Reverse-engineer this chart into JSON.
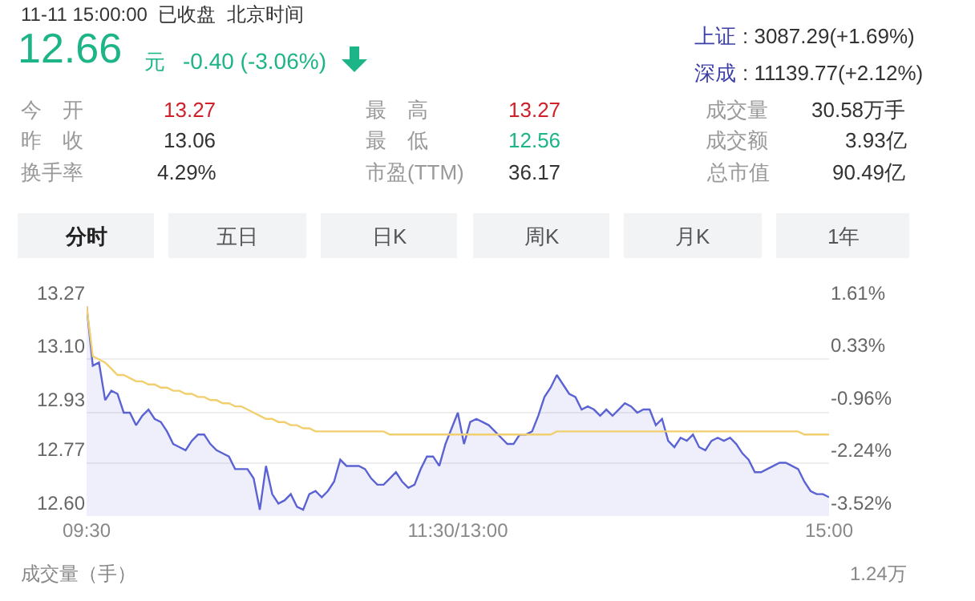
{
  "chart_data": {
    "type": "line",
    "annotations": [
      "11-11 15:00:00  已收盘  北京时间",
      "12.66",
      "元",
      "-0.40 (-3.06%)",
      "上证",
      ": 3087.29(+1.69%)",
      "深成",
      ": 11139.77(+2.12%)",
      "今　开",
      "13.27",
      "最　高",
      "13.27",
      "成交量",
      "30.58万手",
      "昨　收",
      "13.06",
      "最　低",
      "12.56",
      "成交额",
      "3.93亿",
      "换手率",
      "4.29%",
      "市盈(TTM)",
      "36.17",
      "总市值",
      "90.49亿",
      "分时",
      "五日",
      "日K",
      "周K",
      "月K",
      "1年",
      "成交量（手）",
      "1.24万"
    ],
    "categories": [
      "09:30",
      null,
      null,
      null,
      null,
      null,
      null,
      null,
      null,
      null,
      null,
      null,
      null,
      null,
      null,
      null,
      null,
      null,
      null,
      null,
      null,
      null,
      null,
      null,
      null,
      null,
      null,
      null,
      null,
      null,
      null,
      null,
      null,
      null,
      null,
      null,
      null,
      null,
      null,
      null,
      null,
      null,
      null,
      null,
      null,
      null,
      null,
      null,
      null,
      null,
      null,
      null,
      null,
      null,
      null,
      null,
      null,
      null,
      null,
      null,
      "11:30/13:00",
      null,
      null,
      null,
      null,
      null,
      null,
      null,
      null,
      null,
      null,
      null,
      null,
      null,
      null,
      null,
      null,
      null,
      null,
      null,
      null,
      null,
      null,
      null,
      null,
      null,
      null,
      null,
      null,
      null,
      null,
      null,
      null,
      null,
      null,
      null,
      null,
      null,
      null,
      null,
      null,
      null,
      null,
      null,
      null,
      null,
      null,
      null,
      null,
      null,
      null,
      null,
      null,
      null,
      null,
      null,
      null,
      null,
      null,
      null,
      "15:00"
    ],
    "ylim": [
      12.6,
      13.27
    ],
    "yticks": [
      {
        "value": 12.6,
        "label": "12.60"
      },
      12.77,
      12.93,
      {
        "value": 13.1,
        "label": "13.10"
      },
      13.27
    ],
    "y2lim": [
      -3.52,
      1.61
    ],
    "y2ticks": [
      {
        "value": -3.52,
        "label": "-3.52%"
      },
      {
        "value": -2.24,
        "label": "-2.24%"
      },
      {
        "value": -0.96,
        "label": "-0.96%"
      },
      {
        "value": 0.33,
        "label": "0.33%"
      },
      {
        "value": 1.61,
        "label": "1.61%"
      }
    ],
    "grid": "y",
    "series": [
      {
        "type": "area",
        "color": "#5b63d3",
        "values": [
          13.27,
          13.08,
          13.09,
          12.97,
          13.0,
          12.99,
          12.93,
          12.93,
          12.89,
          12.92,
          12.94,
          12.91,
          12.9,
          12.87,
          12.83,
          12.82,
          12.81,
          12.84,
          12.86,
          12.86,
          12.83,
          12.81,
          12.8,
          12.79,
          12.75,
          12.75,
          12.75,
          12.72,
          12.62,
          12.76,
          12.67,
          12.64,
          12.65,
          12.67,
          12.63,
          12.62,
          12.67,
          12.68,
          12.66,
          12.68,
          12.71,
          12.78,
          12.76,
          12.76,
          12.76,
          12.75,
          12.72,
          12.7,
          12.7,
          12.72,
          12.74,
          12.71,
          12.69,
          12.7,
          12.75,
          12.79,
          12.79,
          12.76,
          12.83,
          12.88,
          12.93,
          12.83,
          12.9,
          12.91,
          12.9,
          12.89,
          12.87,
          12.85,
          12.83,
          12.83,
          12.86,
          12.86,
          12.87,
          12.92,
          12.98,
          13.01,
          13.05,
          13.02,
          12.99,
          12.98,
          12.94,
          12.95,
          12.94,
          12.92,
          12.94,
          12.92,
          12.94,
          12.96,
          12.95,
          12.93,
          12.94,
          12.94,
          12.89,
          12.91,
          12.84,
          12.82,
          12.85,
          12.84,
          12.86,
          12.82,
          12.81,
          12.84,
          12.85,
          12.84,
          12.85,
          12.83,
          12.8,
          12.78,
          12.74,
          12.74,
          12.75,
          12.76,
          12.77,
          12.77,
          12.76,
          12.75,
          12.71,
          12.68,
          12.67,
          12.67,
          12.66
        ]
      },
      {
        "type": "line",
        "color": "#f2cf6e",
        "values": [
          13.27,
          13.11,
          13.1,
          13.09,
          13.07,
          13.05,
          13.05,
          13.04,
          13.03,
          13.03,
          13.02,
          13.02,
          13.01,
          13.01,
          13.0,
          13.0,
          12.99,
          12.99,
          12.98,
          12.98,
          12.97,
          12.97,
          12.96,
          12.96,
          12.95,
          12.95,
          12.94,
          12.93,
          12.92,
          12.91,
          12.91,
          12.9,
          12.9,
          12.89,
          12.89,
          12.88,
          12.88,
          12.87,
          12.87,
          12.87,
          12.87,
          12.87,
          12.87,
          12.87,
          12.87,
          12.87,
          12.87,
          12.87,
          12.87,
          12.86,
          12.86,
          12.86,
          12.86,
          12.86,
          12.86,
          12.86,
          12.86,
          12.86,
          12.86,
          12.86,
          12.86,
          12.86,
          12.86,
          12.86,
          12.86,
          12.86,
          12.86,
          12.86,
          12.86,
          12.86,
          12.86,
          12.86,
          12.86,
          12.86,
          12.86,
          12.86,
          12.87,
          12.87,
          12.87,
          12.87,
          12.87,
          12.87,
          12.87,
          12.87,
          12.87,
          12.87,
          12.87,
          12.87,
          12.87,
          12.87,
          12.87,
          12.87,
          12.87,
          12.87,
          12.87,
          12.87,
          12.87,
          12.87,
          12.87,
          12.87,
          12.87,
          12.87,
          12.87,
          12.87,
          12.87,
          12.87,
          12.87,
          12.87,
          12.87,
          12.87,
          12.87,
          12.87,
          12.87,
          12.87,
          12.87,
          12.87,
          12.86,
          12.86,
          12.86,
          12.86,
          12.86
        ]
      }
    ]
  }
}
